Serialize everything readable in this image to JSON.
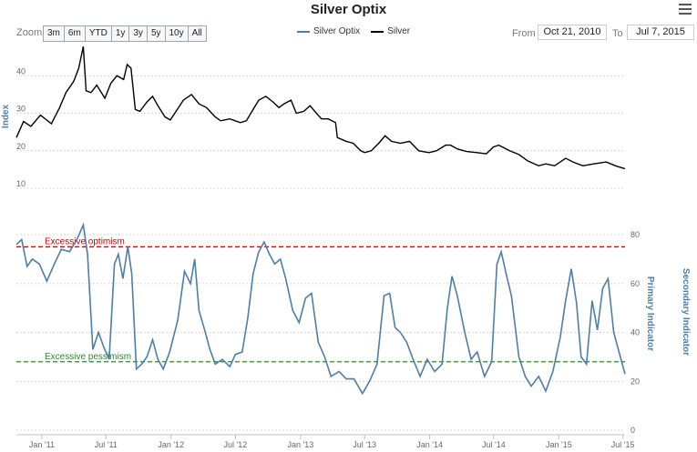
{
  "title": "Silver Optix",
  "toolbar": {
    "zoom_label": "Zoom",
    "zoom_buttons": [
      "3m",
      "6m",
      "YTD",
      "1y",
      "3y",
      "5y",
      "10y",
      "All"
    ],
    "from_label": "From",
    "from_value": "Oct 21, 2010",
    "to_label": "To",
    "to_value": "Jul 7, 2015"
  },
  "legend": [
    {
      "name": "Silver Optix",
      "color": "#4d7ea8"
    },
    {
      "name": "Silver",
      "color": "#000000"
    }
  ],
  "chart_data": {
    "type": "line",
    "x_range": [
      "2010-10-21",
      "2015-07-07"
    ],
    "x_ticks": [
      {
        "label": "Jan '11",
        "date": "2011-01-01"
      },
      {
        "label": "Jul '11",
        "date": "2011-07-01"
      },
      {
        "label": "Jan '12",
        "date": "2012-01-01"
      },
      {
        "label": "Jul '12",
        "date": "2012-07-01"
      },
      {
        "label": "Jan '13",
        "date": "2013-01-01"
      },
      {
        "label": "Jul '13",
        "date": "2013-07-01"
      },
      {
        "label": "Jan '14",
        "date": "2014-01-01"
      },
      {
        "label": "Jul '14",
        "date": "2014-07-01"
      },
      {
        "label": "Jan '15",
        "date": "2015-01-01"
      },
      {
        "label": "Jul '15",
        "date": "2015-07-01"
      }
    ],
    "panels": [
      {
        "name": "Silver",
        "ylabel": "Index",
        "ylim": [
          10,
          50
        ],
        "yticks": [
          10,
          20,
          30,
          40
        ],
        "color": "#000000",
        "points": [
          [
            "2010-10-21",
            23.5
          ],
          [
            "2010-11-10",
            27.8
          ],
          [
            "2010-12-01",
            26.5
          ],
          [
            "2010-12-28",
            29.5
          ],
          [
            "2011-01-28",
            27.2
          ],
          [
            "2011-02-20",
            31.5
          ],
          [
            "2011-03-10",
            35.5
          ],
          [
            "2011-04-01",
            38.5
          ],
          [
            "2011-04-15",
            42.0
          ],
          [
            "2011-04-28",
            47.8
          ],
          [
            "2011-05-06",
            36.0
          ],
          [
            "2011-05-20",
            35.5
          ],
          [
            "2011-06-05",
            37.5
          ],
          [
            "2011-06-28",
            34.0
          ],
          [
            "2011-07-15",
            38.0
          ],
          [
            "2011-08-01",
            40.0
          ],
          [
            "2011-08-20",
            39.0
          ],
          [
            "2011-08-30",
            43.0
          ],
          [
            "2011-09-10",
            42.0
          ],
          [
            "2011-09-22",
            31.0
          ],
          [
            "2011-10-05",
            30.5
          ],
          [
            "2011-10-25",
            33.0
          ],
          [
            "2011-11-10",
            34.5
          ],
          [
            "2011-11-25",
            32.0
          ],
          [
            "2011-12-15",
            29.0
          ],
          [
            "2011-12-30",
            28.2
          ],
          [
            "2012-01-15",
            30.5
          ],
          [
            "2012-02-05",
            33.5
          ],
          [
            "2012-02-28",
            35.0
          ],
          [
            "2012-03-20",
            32.5
          ],
          [
            "2012-04-10",
            31.5
          ],
          [
            "2012-05-05",
            29.0
          ],
          [
            "2012-05-20",
            28.0
          ],
          [
            "2012-06-15",
            28.5
          ],
          [
            "2012-07-15",
            27.5
          ],
          [
            "2012-08-01",
            28.0
          ],
          [
            "2012-08-20",
            31.0
          ],
          [
            "2012-09-05",
            33.5
          ],
          [
            "2012-09-25",
            34.5
          ],
          [
            "2012-10-15",
            33.0
          ],
          [
            "2012-11-01",
            31.5
          ],
          [
            "2012-11-15",
            32.5
          ],
          [
            "2012-12-05",
            33.5
          ],
          [
            "2012-12-20",
            30.0
          ],
          [
            "2013-01-10",
            30.5
          ],
          [
            "2013-01-28",
            32.0
          ],
          [
            "2013-02-15",
            30.0
          ],
          [
            "2013-03-01",
            28.5
          ],
          [
            "2013-03-20",
            28.5
          ],
          [
            "2013-04-10",
            27.5
          ],
          [
            "2013-04-15",
            23.5
          ],
          [
            "2013-05-10",
            22.5
          ],
          [
            "2013-05-30",
            22.0
          ],
          [
            "2013-06-20",
            20.0
          ],
          [
            "2013-07-01",
            19.5
          ],
          [
            "2013-07-20",
            20.0
          ],
          [
            "2013-08-10",
            22.0
          ],
          [
            "2013-08-28",
            24.0
          ],
          [
            "2013-09-15",
            22.5
          ],
          [
            "2013-10-10",
            22.0
          ],
          [
            "2013-11-05",
            22.5
          ],
          [
            "2013-12-01",
            20.0
          ],
          [
            "2013-12-30",
            19.5
          ],
          [
            "2014-01-20",
            20.0
          ],
          [
            "2014-02-15",
            21.5
          ],
          [
            "2014-03-01",
            21.5
          ],
          [
            "2014-03-20",
            20.5
          ],
          [
            "2014-04-15",
            19.8
          ],
          [
            "2014-05-15",
            19.5
          ],
          [
            "2014-06-10",
            19.2
          ],
          [
            "2014-06-30",
            21.0
          ],
          [
            "2014-07-15",
            21.5
          ],
          [
            "2014-08-15",
            20.0
          ],
          [
            "2014-09-10",
            19.0
          ],
          [
            "2014-10-05",
            17.3
          ],
          [
            "2014-11-05",
            16.0
          ],
          [
            "2014-11-25",
            16.5
          ],
          [
            "2014-12-20",
            16.0
          ],
          [
            "2015-01-20",
            18.0
          ],
          [
            "2015-02-10",
            17.0
          ],
          [
            "2015-03-10",
            16.0
          ],
          [
            "2015-04-10",
            16.5
          ],
          [
            "2015-05-15",
            17.0
          ],
          [
            "2015-06-10",
            16.0
          ],
          [
            "2015-07-07",
            15.2
          ]
        ]
      },
      {
        "name": "Silver Optix",
        "ylabel_primary": "Primary Indicator",
        "ylabel_secondary": "Secondary Indicator",
        "ylim": [
          0,
          85
        ],
        "yticks": [
          0,
          20,
          40,
          60,
          80
        ],
        "color": "#4d7ea8",
        "bands": [
          {
            "label": "Excessive optimism",
            "value": 75,
            "color": "#cc0000"
          },
          {
            "label": "Excessive pessimism",
            "value": 28,
            "color": "#2a8a2a"
          }
        ],
        "points": [
          [
            "2010-10-21",
            76
          ],
          [
            "2010-11-05",
            78
          ],
          [
            "2010-11-20",
            67
          ],
          [
            "2010-12-05",
            70
          ],
          [
            "2010-12-25",
            68
          ],
          [
            "2011-01-15",
            61
          ],
          [
            "2011-02-05",
            68
          ],
          [
            "2011-02-25",
            74
          ],
          [
            "2011-03-20",
            73
          ],
          [
            "2011-04-10",
            78
          ],
          [
            "2011-04-28",
            84
          ],
          [
            "2011-05-10",
            72
          ],
          [
            "2011-05-25",
            33
          ],
          [
            "2011-06-10",
            40
          ],
          [
            "2011-06-25",
            34
          ],
          [
            "2011-07-10",
            29
          ],
          [
            "2011-07-25",
            68
          ],
          [
            "2011-08-05",
            72
          ],
          [
            "2011-08-18",
            62
          ],
          [
            "2011-09-01",
            75
          ],
          [
            "2011-09-12",
            64
          ],
          [
            "2011-09-25",
            25
          ],
          [
            "2011-10-10",
            27
          ],
          [
            "2011-10-25",
            30
          ],
          [
            "2011-11-10",
            37
          ],
          [
            "2011-11-25",
            29
          ],
          [
            "2011-12-10",
            25
          ],
          [
            "2011-12-28",
            32
          ],
          [
            "2012-01-20",
            45
          ],
          [
            "2012-02-08",
            65
          ],
          [
            "2012-02-25",
            60
          ],
          [
            "2012-03-08",
            70
          ],
          [
            "2012-03-20",
            49
          ],
          [
            "2012-04-05",
            41
          ],
          [
            "2012-04-20",
            33
          ],
          [
            "2012-05-05",
            27
          ],
          [
            "2012-05-25",
            29
          ],
          [
            "2012-06-15",
            26
          ],
          [
            "2012-07-01",
            31
          ],
          [
            "2012-07-20",
            32
          ],
          [
            "2012-08-05",
            46
          ],
          [
            "2012-08-20",
            64
          ],
          [
            "2012-09-05",
            73
          ],
          [
            "2012-09-20",
            77
          ],
          [
            "2012-10-05",
            72
          ],
          [
            "2012-10-20",
            68
          ],
          [
            "2012-11-05",
            70
          ],
          [
            "2012-11-20",
            62
          ],
          [
            "2012-12-10",
            49
          ],
          [
            "2012-12-28",
            44
          ],
          [
            "2013-01-15",
            54
          ],
          [
            "2013-02-01",
            56
          ],
          [
            "2013-02-20",
            36
          ],
          [
            "2013-03-10",
            30
          ],
          [
            "2013-03-28",
            22
          ],
          [
            "2013-04-20",
            24
          ],
          [
            "2013-05-10",
            21
          ],
          [
            "2013-06-01",
            21
          ],
          [
            "2013-06-25",
            15
          ],
          [
            "2013-07-15",
            20
          ],
          [
            "2013-08-05",
            27
          ],
          [
            "2013-08-25",
            55
          ],
          [
            "2013-09-10",
            56
          ],
          [
            "2013-09-25",
            42
          ],
          [
            "2013-10-10",
            40
          ],
          [
            "2013-10-28",
            36
          ],
          [
            "2013-11-15",
            29
          ],
          [
            "2013-12-05",
            22
          ],
          [
            "2013-12-25",
            29
          ],
          [
            "2014-01-15",
            24
          ],
          [
            "2014-02-05",
            27
          ],
          [
            "2014-02-20",
            50
          ],
          [
            "2014-03-05",
            63
          ],
          [
            "2014-03-20",
            55
          ],
          [
            "2014-04-10",
            40
          ],
          [
            "2014-04-28",
            29
          ],
          [
            "2014-05-15",
            32
          ],
          [
            "2014-06-05",
            22
          ],
          [
            "2014-06-25",
            28
          ],
          [
            "2014-07-10",
            68
          ],
          [
            "2014-07-22",
            73
          ],
          [
            "2014-08-05",
            64
          ],
          [
            "2014-08-20",
            55
          ],
          [
            "2014-09-10",
            30
          ],
          [
            "2014-09-28",
            22
          ],
          [
            "2014-10-15",
            18
          ],
          [
            "2014-11-05",
            22
          ],
          [
            "2014-11-25",
            16
          ],
          [
            "2014-12-15",
            24
          ],
          [
            "2015-01-05",
            38
          ],
          [
            "2015-01-20",
            53
          ],
          [
            "2015-02-05",
            66
          ],
          [
            "2015-02-20",
            52
          ],
          [
            "2015-03-05",
            30
          ],
          [
            "2015-03-20",
            27
          ],
          [
            "2015-04-05",
            53
          ],
          [
            "2015-04-20",
            41
          ],
          [
            "2015-05-05",
            58
          ],
          [
            "2015-05-20",
            62
          ],
          [
            "2015-06-05",
            40
          ],
          [
            "2015-06-20",
            32
          ],
          [
            "2015-07-07",
            23
          ]
        ]
      }
    ]
  }
}
